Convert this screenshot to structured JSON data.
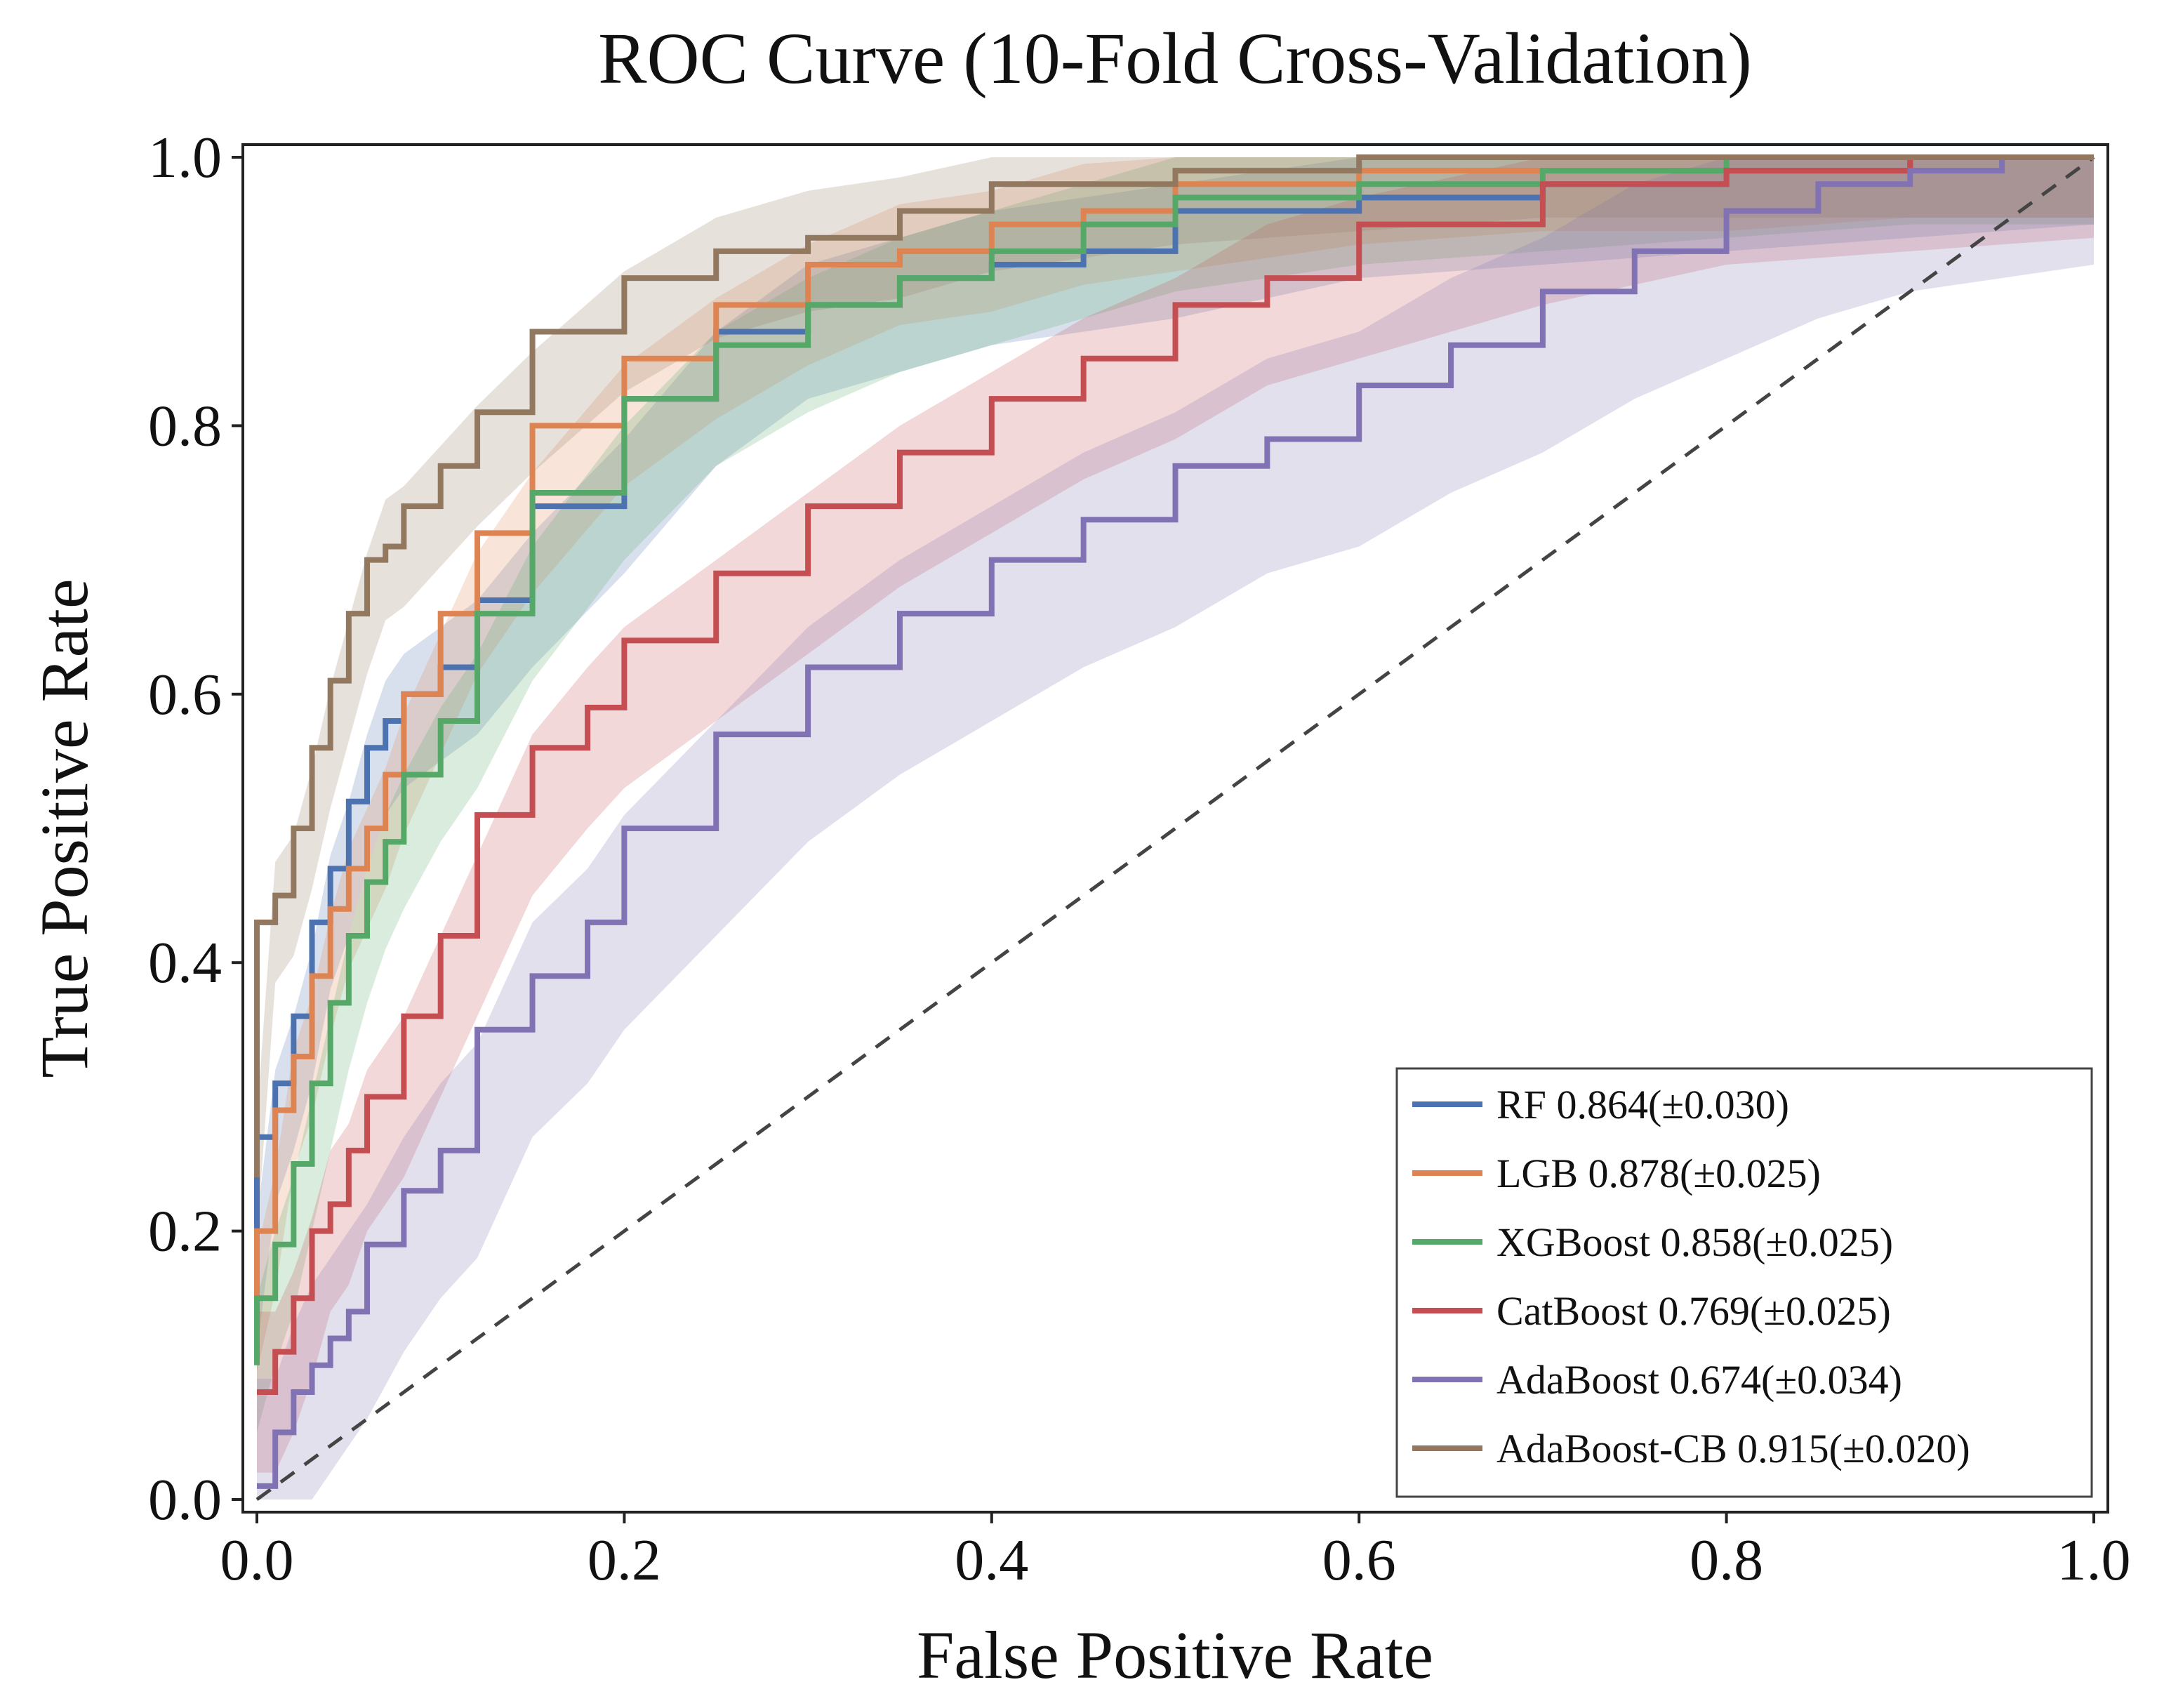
{
  "chart_data": {
    "type": "line",
    "title": "ROC Curve (10-Fold Cross-Validation)",
    "xlabel": "False Positive Rate",
    "ylabel": "True Positive Rate",
    "xlim": [
      0.0,
      1.0
    ],
    "ylim": [
      0.0,
      1.0
    ],
    "xticks": [
      0.0,
      0.2,
      0.4,
      0.6,
      0.8,
      1.0
    ],
    "yticks": [
      0.0,
      0.2,
      0.4,
      0.6,
      0.8,
      1.0
    ],
    "xtick_labels": [
      "0.0",
      "0.2",
      "0.4",
      "0.6",
      "0.8",
      "1.0"
    ],
    "ytick_labels": [
      "0.0",
      "0.2",
      "0.4",
      "0.6",
      "0.8",
      "1.0"
    ],
    "grid": false,
    "legend_position": "bottom-right",
    "reference_line": {
      "name": "chance",
      "x": [
        0,
        1
      ],
      "y": [
        0,
        1
      ],
      "style": "dashed",
      "color": "#444444"
    },
    "series": [
      {
        "name": "RF",
        "legend_label": "RF  0.864(±0.030)",
        "color": "#4C72B0",
        "x": [
          0.0,
          0.01,
          0.02,
          0.03,
          0.04,
          0.05,
          0.06,
          0.07,
          0.08,
          0.1,
          0.12,
          0.15,
          0.2,
          0.25,
          0.3,
          0.35,
          0.4,
          0.45,
          0.5,
          0.6,
          0.7,
          0.8,
          0.9,
          1.0
        ],
        "y": [
          0.16,
          0.27,
          0.31,
          0.36,
          0.43,
          0.47,
          0.52,
          0.56,
          0.58,
          0.6,
          0.62,
          0.67,
          0.74,
          0.82,
          0.87,
          0.89,
          0.91,
          0.92,
          0.93,
          0.96,
          0.97,
          0.98,
          0.99,
          1.0
        ],
        "band": 0.05
      },
      {
        "name": "LGB",
        "legend_label": "LGB  0.878(±0.025)",
        "color": "#DD8452",
        "x": [
          0.0,
          0.01,
          0.02,
          0.03,
          0.04,
          0.05,
          0.06,
          0.07,
          0.08,
          0.1,
          0.12,
          0.15,
          0.2,
          0.25,
          0.3,
          0.35,
          0.4,
          0.45,
          0.5,
          0.6,
          0.7,
          0.8,
          0.9,
          1.0
        ],
        "y": [
          0.14,
          0.2,
          0.29,
          0.33,
          0.39,
          0.44,
          0.47,
          0.5,
          0.54,
          0.6,
          0.66,
          0.72,
          0.8,
          0.85,
          0.89,
          0.92,
          0.93,
          0.95,
          0.96,
          0.98,
          0.99,
          0.99,
          1.0,
          1.0
        ],
        "band": 0.045
      },
      {
        "name": "XGBoost",
        "legend_label": "XGBoost  0.858(±0.025)",
        "color": "#55A868",
        "x": [
          0.0,
          0.01,
          0.02,
          0.03,
          0.04,
          0.05,
          0.06,
          0.07,
          0.08,
          0.1,
          0.12,
          0.15,
          0.2,
          0.25,
          0.3,
          0.35,
          0.4,
          0.45,
          0.5,
          0.6,
          0.7,
          0.8,
          0.9,
          1.0
        ],
        "y": [
          0.1,
          0.15,
          0.19,
          0.25,
          0.31,
          0.37,
          0.42,
          0.46,
          0.49,
          0.54,
          0.58,
          0.66,
          0.75,
          0.82,
          0.86,
          0.89,
          0.91,
          0.93,
          0.95,
          0.97,
          0.98,
          0.99,
          1.0,
          1.0
        ],
        "band": 0.05
      },
      {
        "name": "CatBoost",
        "legend_label": "CatBoost  0.769(±0.025)",
        "color": "#C44E52",
        "x": [
          0.0,
          0.01,
          0.02,
          0.03,
          0.04,
          0.05,
          0.06,
          0.08,
          0.1,
          0.12,
          0.15,
          0.18,
          0.2,
          0.25,
          0.3,
          0.35,
          0.4,
          0.45,
          0.5,
          0.55,
          0.6,
          0.7,
          0.8,
          0.9,
          1.0
        ],
        "y": [
          0.08,
          0.08,
          0.11,
          0.15,
          0.2,
          0.22,
          0.26,
          0.3,
          0.36,
          0.42,
          0.51,
          0.56,
          0.59,
          0.64,
          0.69,
          0.74,
          0.78,
          0.82,
          0.85,
          0.89,
          0.91,
          0.95,
          0.98,
          0.99,
          1.0
        ],
        "band": 0.06
      },
      {
        "name": "AdaBoost",
        "legend_label": "AdaBoost  0.674(±0.034)",
        "color": "#8172B3",
        "x": [
          0.0,
          0.01,
          0.02,
          0.03,
          0.04,
          0.05,
          0.06,
          0.08,
          0.1,
          0.12,
          0.15,
          0.18,
          0.2,
          0.25,
          0.3,
          0.35,
          0.4,
          0.45,
          0.5,
          0.55,
          0.6,
          0.65,
          0.7,
          0.75,
          0.8,
          0.85,
          0.9,
          0.95,
          1.0
        ],
        "y": [
          0.01,
          0.01,
          0.05,
          0.08,
          0.1,
          0.12,
          0.14,
          0.19,
          0.23,
          0.26,
          0.35,
          0.39,
          0.43,
          0.5,
          0.57,
          0.62,
          0.66,
          0.7,
          0.73,
          0.77,
          0.79,
          0.83,
          0.86,
          0.9,
          0.93,
          0.96,
          0.98,
          0.99,
          1.0
        ],
        "band": 0.08
      },
      {
        "name": "AdaBoost-CB",
        "legend_label": "AdaBoost-CB  0.915(±0.020)",
        "color": "#937860",
        "x": [
          0.0,
          0.01,
          0.02,
          0.03,
          0.04,
          0.05,
          0.06,
          0.07,
          0.08,
          0.1,
          0.12,
          0.15,
          0.2,
          0.25,
          0.3,
          0.35,
          0.4,
          0.5,
          0.6,
          0.7,
          0.8,
          0.9,
          1.0
        ],
        "y": [
          0.24,
          0.43,
          0.45,
          0.5,
          0.56,
          0.61,
          0.66,
          0.7,
          0.71,
          0.74,
          0.77,
          0.81,
          0.87,
          0.91,
          0.93,
          0.94,
          0.96,
          0.98,
          0.99,
          1.0,
          1.0,
          1.0,
          1.0
        ],
        "band": 0.045
      }
    ]
  }
}
